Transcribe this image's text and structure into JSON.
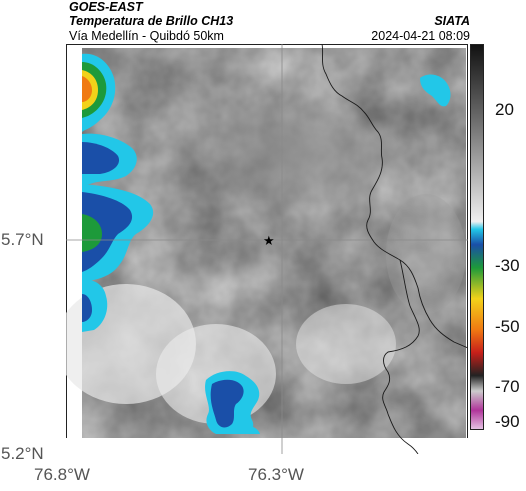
{
  "header": {
    "satellite": "GOES-EAST",
    "product": "Temperatura de Brillo CH13",
    "agency": "SIATA",
    "region": "Vía Medellín - Quibdó 50km",
    "datetime": "2024-04-21 08:09"
  },
  "map": {
    "marker": "star-marker",
    "gridline_color": "#8a8a8a",
    "border_color": "#1a1a1a",
    "lat_labels": [
      "5.7°N",
      "5.2°N"
    ],
    "lon_labels": [
      "76.8°W",
      "76.3°W"
    ]
  },
  "colorbar": {
    "ticks": [
      "20",
      "-30",
      "-50",
      "-70",
      "-90"
    ],
    "colors": {
      "cyan": "#22c7e8",
      "blue": "#1a4fa8",
      "green": "#1d9a3a",
      "yellow": "#f2d21a",
      "orange": "#f07a12",
      "red": "#c8201a",
      "dark": "#222222",
      "magenta": "#b0359a"
    }
  }
}
